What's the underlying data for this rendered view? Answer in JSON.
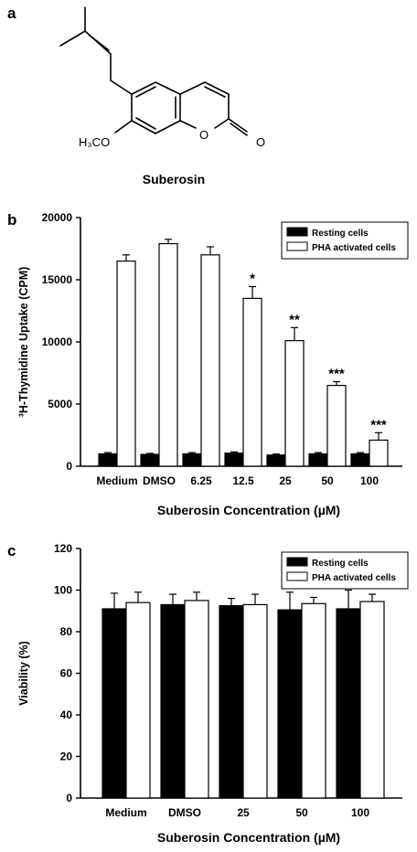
{
  "panel_a": {
    "letter": "a",
    "compound_name": "Suberosin",
    "methoxy_label": "H₃CO",
    "ring_o_label": "O",
    "carbonyl_o_label": "O"
  },
  "chart_data": [
    {
      "panel": "b",
      "type": "bar",
      "title": "",
      "xlabel": "Suberosin Concentration (µM)",
      "ylabel": "³H-Thymidine Uptake (CPM)",
      "ylim": [
        0,
        20000
      ],
      "yticks": [
        0,
        5000,
        10000,
        15000,
        20000
      ],
      "categories": [
        "Medium",
        "DMSO",
        "6.25",
        "12.5",
        "25",
        "50",
        "100"
      ],
      "legend_position": "top-right",
      "series": [
        {
          "name": "Resting cells",
          "color": "#000000",
          "values": [
            1000,
            950,
            1000,
            1050,
            900,
            1000,
            1000
          ],
          "errors": [
            100,
            80,
            100,
            100,
            80,
            100,
            100
          ]
        },
        {
          "name": "PHA activated cells",
          "color": "#ffffff",
          "values": [
            16500,
            17900,
            17000,
            13500,
            10100,
            6500,
            2100
          ],
          "errors": [
            500,
            350,
            650,
            950,
            1050,
            300,
            600
          ]
        }
      ],
      "significance": [
        "",
        "",
        "",
        "*",
        "**",
        "***",
        "***"
      ]
    },
    {
      "panel": "c",
      "type": "bar",
      "title": "",
      "xlabel": "Suberosin Concentration (µM)",
      "ylabel": "Viability (%)",
      "ylim": [
        0,
        120
      ],
      "yticks": [
        0,
        20,
        40,
        60,
        80,
        100,
        120
      ],
      "categories": [
        "Medium",
        "DMSO",
        "25",
        "50",
        "100"
      ],
      "legend_position": "top-right",
      "series": [
        {
          "name": "Resting cells",
          "color": "#000000",
          "values": [
            91,
            93,
            92.5,
            90.5,
            91
          ],
          "errors": [
            7.5,
            5,
            3.5,
            8.5,
            9
          ]
        },
        {
          "name": "PHA activated cells",
          "color": "#ffffff",
          "values": [
            94,
            95,
            93,
            93.5,
            94.5
          ],
          "errors": [
            5,
            4,
            5,
            3,
            3.5
          ]
        }
      ]
    }
  ]
}
